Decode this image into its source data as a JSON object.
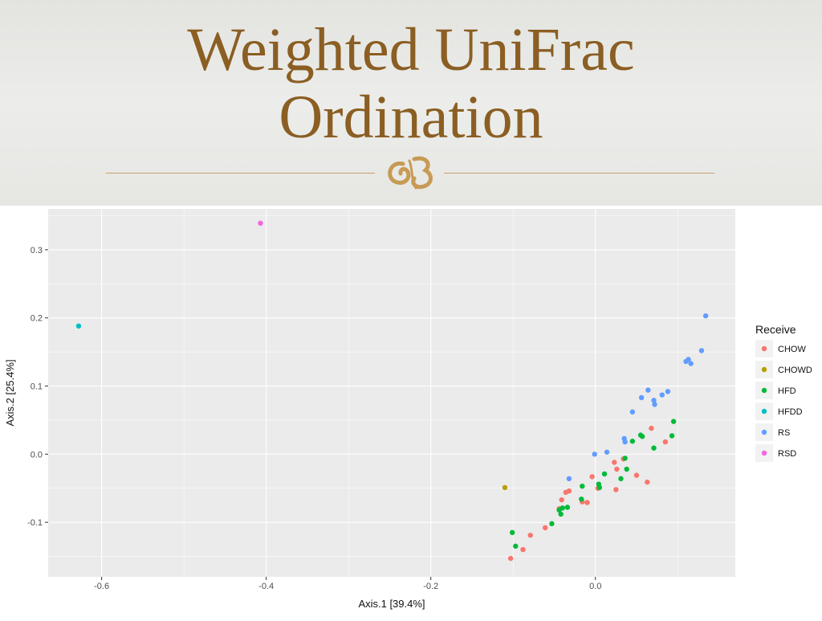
{
  "slide": {
    "title_line1": "Weighted UniFrac",
    "title_line2": "Ordination"
  },
  "colors": {
    "title": "#8b5e23",
    "rule": "#c9a16a",
    "panel_bg": "#ebebeb",
    "grid": "#ffffff",
    "CHOW": "#f8766d",
    "CHOWD": "#b79f00",
    "HFD": "#00ba38",
    "HFDD": "#00bfc4",
    "RS": "#619cff",
    "RSD": "#f564e3"
  },
  "ornament_icon": "swash-ornament-icon",
  "chart_data": {
    "type": "scatter",
    "title": "",
    "xlabel": "Axis.1   [39.4%]",
    "ylabel": "Axis.2   [25.4%]",
    "xlim": [
      -0.665,
      0.17
    ],
    "ylim": [
      -0.18,
      0.36
    ],
    "x_ticks": [
      -0.6,
      -0.4,
      -0.2,
      0.0
    ],
    "x_tick_labels": [
      "-0.6",
      "-0.4",
      "-0.2",
      "0.0"
    ],
    "y_ticks": [
      0.3,
      0.2,
      0.1,
      0.0,
      -0.1
    ],
    "y_tick_labels": [
      "0.3",
      "0.2",
      "0.1",
      "0.0",
      "-0.1"
    ],
    "grid": true,
    "legend_title": "Receive",
    "legend_position": "right",
    "series": [
      {
        "name": "CHOW",
        "points": [
          [
            -0.103,
            -0.153
          ],
          [
            -0.088,
            -0.14
          ],
          [
            -0.079,
            -0.119
          ],
          [
            -0.061,
            -0.108
          ],
          [
            -0.044,
            -0.08
          ],
          [
            -0.041,
            -0.067
          ],
          [
            -0.036,
            -0.056
          ],
          [
            -0.032,
            -0.054
          ],
          [
            -0.016,
            -0.07
          ],
          [
            -0.01,
            -0.071
          ],
          [
            -0.004,
            -0.033
          ],
          [
            0.003,
            -0.05
          ],
          [
            0.023,
            -0.012
          ],
          [
            0.026,
            -0.022
          ],
          [
            0.025,
            -0.052
          ],
          [
            0.034,
            -0.007
          ],
          [
            0.05,
            -0.031
          ],
          [
            0.063,
            -0.041
          ],
          [
            0.068,
            0.038
          ],
          [
            0.085,
            0.018
          ]
        ]
      },
      {
        "name": "CHOWD",
        "points": [
          [
            -0.11,
            -0.049
          ]
        ]
      },
      {
        "name": "HFD",
        "points": [
          [
            -0.101,
            -0.115
          ],
          [
            -0.097,
            -0.135
          ],
          [
            -0.053,
            -0.102
          ],
          [
            -0.044,
            -0.082
          ],
          [
            -0.042,
            -0.088
          ],
          [
            -0.04,
            -0.079
          ],
          [
            -0.034,
            -0.078
          ],
          [
            -0.017,
            -0.066
          ],
          [
            -0.016,
            -0.047
          ],
          [
            0.004,
            -0.044
          ],
          [
            0.005,
            -0.049
          ],
          [
            0.011,
            -0.029
          ],
          [
            0.031,
            -0.036
          ],
          [
            0.036,
            -0.006
          ],
          [
            0.038,
            -0.022
          ],
          [
            0.045,
            0.019
          ],
          [
            0.055,
            0.028
          ],
          [
            0.057,
            0.026
          ],
          [
            0.071,
            0.009
          ],
          [
            0.093,
            0.027
          ],
          [
            0.095,
            0.048
          ]
        ]
      },
      {
        "name": "HFDD",
        "points": [
          [
            -0.628,
            0.188
          ]
        ]
      },
      {
        "name": "RS",
        "points": [
          [
            -0.032,
            -0.036
          ],
          [
            -0.001,
            0.0
          ],
          [
            0.014,
            0.003
          ],
          [
            0.035,
            0.023
          ],
          [
            0.036,
            0.018
          ],
          [
            0.045,
            0.062
          ],
          [
            0.056,
            0.083
          ],
          [
            0.064,
            0.094
          ],
          [
            0.071,
            0.079
          ],
          [
            0.072,
            0.073
          ],
          [
            0.081,
            0.087
          ],
          [
            0.088,
            0.092
          ],
          [
            0.11,
            0.136
          ],
          [
            0.113,
            0.139
          ],
          [
            0.116,
            0.133
          ],
          [
            0.129,
            0.152
          ],
          [
            0.134,
            0.203
          ]
        ]
      },
      {
        "name": "RSD",
        "points": [
          [
            -0.407,
            0.339
          ]
        ]
      }
    ]
  }
}
